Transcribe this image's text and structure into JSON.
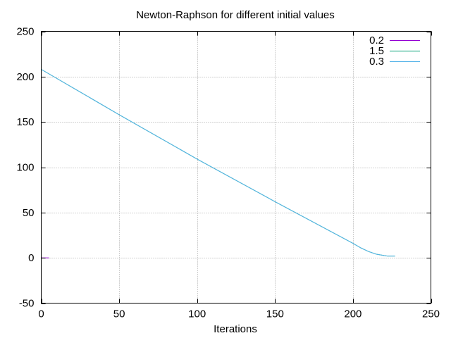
{
  "chart_data": {
    "type": "line",
    "title": "Newton-Raphson for different initial values",
    "xlabel": "Iterations",
    "ylabel": "",
    "xlim": [
      0,
      250
    ],
    "ylim": [
      -50,
      250
    ],
    "xticks": [
      "0",
      "50",
      "100",
      "150",
      "200",
      "250"
    ],
    "yticks": [
      "250",
      "200",
      "150",
      "100",
      "50",
      "0",
      "-50"
    ],
    "grid": true,
    "legend_position": "top-right",
    "series": [
      {
        "name": "0.2",
        "color": "#9400d3",
        "x": [
          0,
          1,
          2,
          3,
          4,
          5
        ],
        "y": [
          0,
          0,
          0,
          0,
          0,
          0
        ]
      },
      {
        "name": "1.5",
        "color": "#009e73",
        "x": [
          0,
          50,
          100,
          150,
          200,
          205,
          210,
          215,
          220,
          222,
          227
        ],
        "y": [
          208,
          158,
          109,
          62,
          16,
          11,
          7,
          4,
          2.5,
          2,
          2
        ]
      },
      {
        "name": "0.3",
        "color": "#56b4e9",
        "x": [
          0,
          50,
          100,
          150,
          200,
          205,
          210,
          215,
          220,
          222,
          227
        ],
        "y": [
          208,
          158,
          109,
          62,
          16,
          11,
          7,
          4,
          2.5,
          2,
          2
        ]
      }
    ]
  }
}
